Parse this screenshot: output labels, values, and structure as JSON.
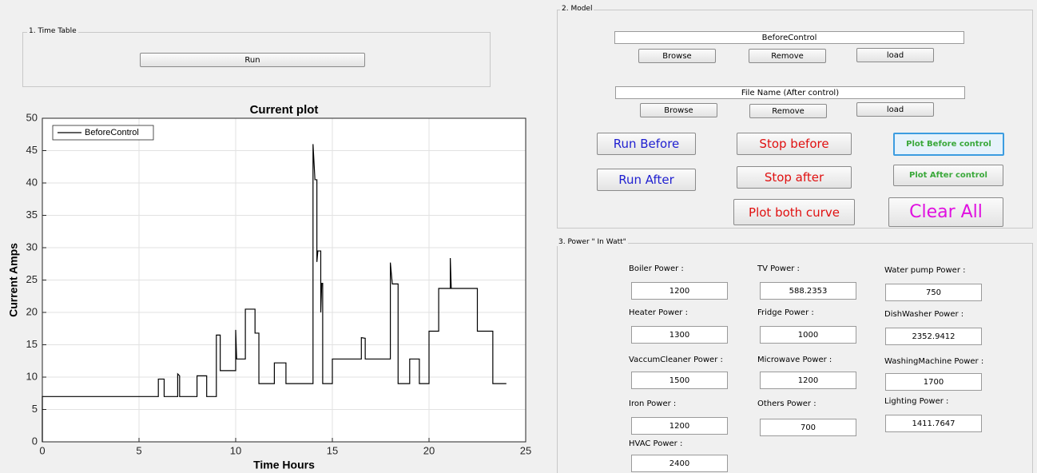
{
  "time_table": {
    "title": "1. Time Table",
    "run": "Run"
  },
  "model": {
    "title": "2. Model",
    "file_before": "BeforeControl",
    "file_after": "File Name (After control)",
    "row1": [
      "Browse",
      "Remove",
      "load"
    ],
    "row2": [
      "Browse",
      "Remove",
      "load"
    ],
    "actions": [
      "Run Before",
      "Stop before",
      "Plot Before control",
      "Run After",
      "Stop after",
      "Plot After control",
      "Plot both curve",
      "Clear All"
    ]
  },
  "power": {
    "title": "3. Power \" In Watt\"",
    "fields": [
      {
        "label": "Boiler Power :",
        "value": "1200"
      },
      {
        "label": "TV Power :",
        "value": "588.2353"
      },
      {
        "label": "Water pump Power :",
        "value": "750"
      },
      {
        "label": "Heater Power :",
        "value": "1300"
      },
      {
        "label": "Fridge Power :",
        "value": "1000"
      },
      {
        "label": "DishWasher Power :",
        "value": "2352.9412"
      },
      {
        "label": "VaccumCleaner Power :",
        "value": "1500"
      },
      {
        "label": "Microwave Power :",
        "value": "1200"
      },
      {
        "label": "WashingMachine Power :",
        "value": "1700"
      },
      {
        "label": "Iron Power :",
        "value": "1200"
      },
      {
        "label": "Others Power :",
        "value": "700"
      },
      {
        "label": "Lighting Power :",
        "value": "1411.7647"
      },
      {
        "label": "HVAC Power :",
        "value": "2400"
      }
    ]
  },
  "chart_data": {
    "type": "line",
    "title": "Current plot",
    "x_label": "Time Hours",
    "y_label": "Current Amps",
    "x": [
      0,
      0,
      6.0,
      6.0,
      6.3,
      6.3,
      7.0,
      7.0,
      7.1,
      7.1,
      8.0,
      8.0,
      8.5,
      8.5,
      9.0,
      9.0,
      9.2,
      9.2,
      10.0,
      10.0,
      10.05,
      10.5,
      10.5,
      11.0,
      11.0,
      11.2,
      11.2,
      12.0,
      12.0,
      12.6,
      12.6,
      14.0,
      14.0,
      14.1,
      14.2,
      14.2,
      14.25,
      14.4,
      14.4,
      14.45,
      14.5,
      14.5,
      15.0,
      15.0,
      16.5,
      16.5,
      16.7,
      16.7,
      18.0,
      18.0,
      18.1,
      18.4,
      18.4,
      19.0,
      19.0,
      19.5,
      19.5,
      20.0,
      20.0,
      20.5,
      20.5,
      21.1,
      21.1,
      21.15,
      22.5,
      22.5,
      23.3,
      23.3,
      24.0
    ],
    "series": [
      {
        "name": "BeforeControl",
        "color": "#000000",
        "values": [
          0,
          7,
          7,
          9.7,
          9.7,
          7,
          7,
          10.5,
          10.2,
          7,
          7,
          10.2,
          10.2,
          7,
          7,
          16.5,
          16.5,
          11,
          11,
          17.3,
          12.8,
          12.8,
          20.5,
          20.5,
          16.8,
          16.8,
          9,
          9,
          12.2,
          12.2,
          9,
          9,
          46,
          40.5,
          40.5,
          27.8,
          29.5,
          29.5,
          20,
          24.5,
          24.5,
          9,
          9,
          12.8,
          12.8,
          16.1,
          16,
          12.8,
          12.8,
          27.7,
          24.4,
          24.4,
          9,
          9,
          12.8,
          12.8,
          9,
          9,
          17.1,
          17.1,
          23.7,
          23.7,
          28.4,
          23.7,
          23.7,
          17.1,
          17.1,
          9,
          9
        ]
      }
    ],
    "xlim": [
      0,
      25
    ],
    "ylim": [
      0,
      50
    ],
    "xticks": [
      0,
      5,
      10,
      15,
      20,
      25
    ],
    "yticks": [
      0,
      5,
      10,
      15,
      20,
      25,
      30,
      35,
      40,
      45,
      50
    ],
    "grid": true,
    "legend": "northwest"
  }
}
